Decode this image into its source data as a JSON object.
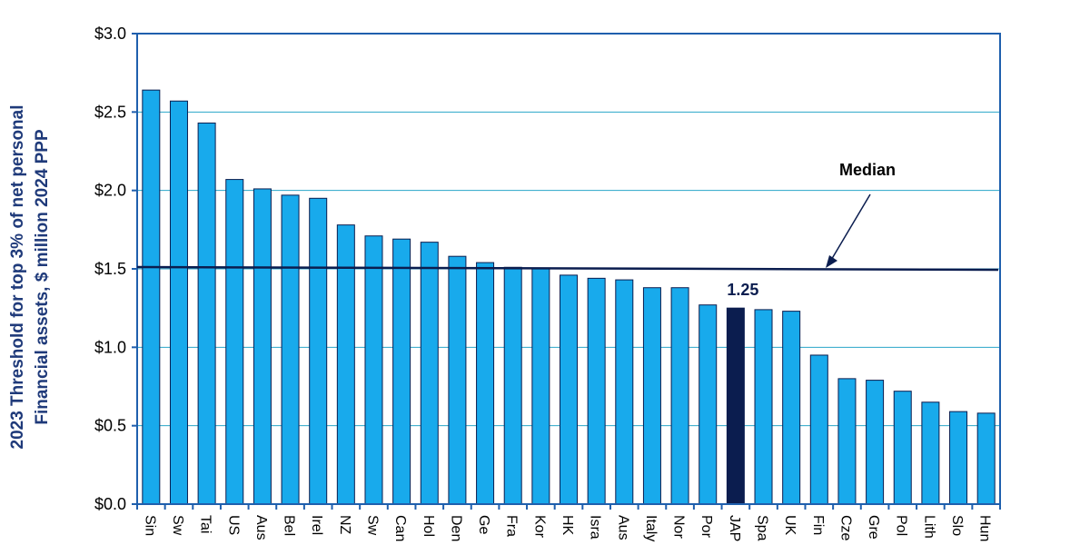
{
  "chart_data": {
    "type": "bar",
    "ylabel": [
      "2023 Threshold for top 3% of net personal",
      "Financial assets, $ million 2024 PPP"
    ],
    "xlabel": "",
    "ylim": [
      0,
      3.0
    ],
    "yticks": [
      "$0.0",
      "$0.5",
      "$1.0",
      "$1.5",
      "$2.0",
      "$2.5",
      "$3.0"
    ],
    "grid": "horizontal",
    "categories": [
      "Sin",
      "Sw",
      "Tai",
      "US",
      "Aus",
      "Bel",
      "Irel",
      "NZ",
      "Sw",
      "Can",
      "Hol",
      "Den",
      "Ge",
      "Fra",
      "Kor",
      "HK",
      "Isra",
      "Aus",
      "Italy",
      "Nor",
      "Por",
      "JAP",
      "Spa",
      "UK",
      "Fin",
      "Cze",
      "Gre",
      "Pol",
      "Lith",
      "Slo",
      "Hun"
    ],
    "values": [
      2.64,
      2.57,
      2.43,
      2.07,
      2.01,
      1.97,
      1.95,
      1.78,
      1.71,
      1.69,
      1.67,
      1.58,
      1.54,
      1.51,
      1.5,
      1.46,
      1.44,
      1.43,
      1.38,
      1.38,
      1.27,
      1.25,
      1.24,
      1.23,
      0.95,
      0.8,
      0.79,
      0.72,
      0.65,
      0.59,
      0.58
    ],
    "highlight_index": 21,
    "highlight_label": "1.25",
    "median": 1.5,
    "median_label": "Median",
    "colors": {
      "bar": "#18aaec",
      "highlight": "#0b1d4f",
      "axis": "#1f5fad",
      "grid": "#2aa6c8",
      "median_line": "#0b1d4f",
      "ylabel": "#1f3a7a"
    }
  }
}
